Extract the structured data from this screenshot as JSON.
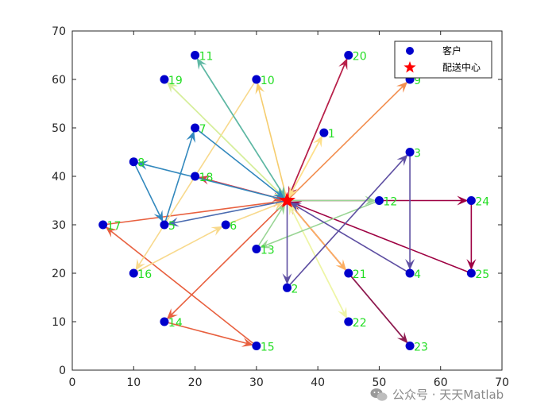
{
  "chart_data": {
    "type": "scatter",
    "xlim": [
      0,
      70
    ],
    "ylim": [
      0,
      70
    ],
    "xticks": [
      0,
      10,
      20,
      30,
      40,
      50,
      60,
      70
    ],
    "yticks": [
      0,
      10,
      20,
      30,
      40,
      50,
      60,
      70
    ],
    "grid": false,
    "legend_position": "top-right",
    "legend": [
      {
        "name": "客户",
        "marker": "circle",
        "color": "#0000cc"
      },
      {
        "name": "配送中心",
        "marker": "star",
        "color": "#ff0000"
      }
    ],
    "depot": {
      "x": 35,
      "y": 35
    },
    "customers": [
      {
        "id": "1",
        "x": 41,
        "y": 49
      },
      {
        "id": "2",
        "x": 35,
        "y": 17
      },
      {
        "id": "3",
        "x": 55,
        "y": 45
      },
      {
        "id": "4",
        "x": 55,
        "y": 20
      },
      {
        "id": "5",
        "x": 15,
        "y": 30
      },
      {
        "id": "6",
        "x": 25,
        "y": 30
      },
      {
        "id": "7",
        "x": 20,
        "y": 50
      },
      {
        "id": "8",
        "x": 10,
        "y": 43
      },
      {
        "id": "9",
        "x": 55,
        "y": 60
      },
      {
        "id": "10",
        "x": 30,
        "y": 60
      },
      {
        "id": "11",
        "x": 20,
        "y": 65
      },
      {
        "id": "12",
        "x": 50,
        "y": 35
      },
      {
        "id": "13",
        "x": 30,
        "y": 25
      },
      {
        "id": "14",
        "x": 15,
        "y": 10
      },
      {
        "id": "15",
        "x": 30,
        "y": 5
      },
      {
        "id": "16",
        "x": 10,
        "y": 20
      },
      {
        "id": "17",
        "x": 5,
        "y": 30
      },
      {
        "id": "18",
        "x": 20,
        "y": 40
      },
      {
        "id": "19",
        "x": 15,
        "y": 60
      },
      {
        "id": "20",
        "x": 45,
        "y": 65
      },
      {
        "id": "21",
        "x": 45,
        "y": 20
      },
      {
        "id": "22",
        "x": 45,
        "y": 10
      },
      {
        "id": "23",
        "x": 55,
        "y": 5
      },
      {
        "id": "24",
        "x": 65,
        "y": 35
      },
      {
        "id": "25",
        "x": 65,
        "y": 20
      }
    ],
    "routes": [
      {
        "color": "#9e0142",
        "edges": [
          [
            "0",
            "24"
          ],
          [
            "24",
            "25"
          ],
          [
            "25",
            "0"
          ]
        ]
      },
      {
        "color": "#b8214a",
        "edges": [
          [
            "0",
            "20"
          ],
          [
            "20",
            "0"
          ]
        ]
      },
      {
        "color": "#8e1b50",
        "edges": [
          [
            "0",
            "23"
          ],
          [
            "23",
            "0"
          ]
        ]
      },
      {
        "color": "#d53e4f",
        "edges": [
          [
            "0",
            "18"
          ],
          [
            "18",
            "0"
          ]
        ]
      },
      {
        "color": "#e8603f",
        "edges": [
          [
            "0",
            "14"
          ],
          [
            "14",
            "15"
          ],
          [
            "15",
            "17"
          ],
          [
            "17",
            "0"
          ]
        ]
      },
      {
        "color": "#f28e4f",
        "edges": [
          [
            "0",
            "9"
          ]
        ]
      },
      {
        "color": "#fdae61",
        "edges": [
          [
            "0",
            "21"
          ],
          [
            "21",
            "0"
          ]
        ]
      },
      {
        "color": "#fee08b",
        "edges": [
          [
            "0",
            "1"
          ],
          [
            "1",
            "0"
          ]
        ]
      },
      {
        "color": "#f6cd6e",
        "edges": [
          [
            "0",
            "10"
          ]
        ]
      },
      {
        "color": "#f8d98c",
        "edges": [
          [
            "10",
            "16"
          ],
          [
            "16",
            "6"
          ],
          [
            "6",
            "0"
          ]
        ]
      },
      {
        "color": "#eef5a6",
        "edges": [
          [
            "0",
            "22"
          ],
          [
            "22",
            "0"
          ]
        ]
      },
      {
        "color": "#d6ee9b",
        "edges": [
          [
            "0",
            "19"
          ],
          [
            "19",
            "0"
          ]
        ]
      },
      {
        "color": "#99d594",
        "edges": [
          [
            "0",
            "12"
          ],
          [
            "12",
            "13"
          ],
          [
            "13",
            "0"
          ]
        ]
      },
      {
        "color": "#5fb8a4",
        "edges": [
          [
            "0",
            "11"
          ],
          [
            "11",
            "0"
          ]
        ]
      },
      {
        "color": "#3288bd",
        "edges": [
          [
            "0",
            "8"
          ],
          [
            "8",
            "5"
          ],
          [
            "5",
            "7"
          ],
          [
            "7",
            "0"
          ]
        ]
      },
      {
        "color": "#4a6bb0",
        "edges": [
          [
            "0",
            "5"
          ]
        ]
      },
      {
        "color": "#5e4fa2",
        "edges": [
          [
            "0",
            "2"
          ],
          [
            "2",
            "3"
          ],
          [
            "3",
            "4"
          ],
          [
            "4",
            "0"
          ]
        ]
      }
    ]
  },
  "watermark": {
    "text": "公众号 · 天天Matlab",
    "icon": "wechat-icon"
  }
}
